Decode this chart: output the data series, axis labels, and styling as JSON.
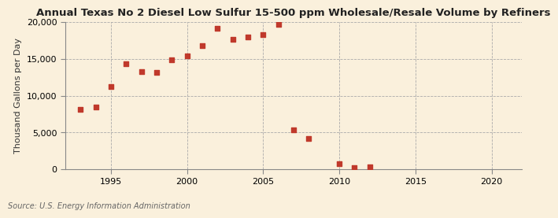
{
  "title": "Annual Texas No 2 Diesel Low Sulfur 15-500 ppm Wholesale/Resale Volume by Refiners",
  "ylabel": "Thousand Gallons per Day",
  "source": "Source: U.S. Energy Information Administration",
  "years": [
    1993,
    1994,
    1995,
    1996,
    1997,
    1998,
    1999,
    2000,
    2001,
    2002,
    2003,
    2004,
    2005,
    2006,
    2007,
    2008,
    2010,
    2011,
    2012
  ],
  "values": [
    8100,
    8500,
    11200,
    14300,
    13300,
    13200,
    14900,
    15400,
    16800,
    19200,
    17700,
    18000,
    18300,
    19700,
    5400,
    4200,
    800,
    200,
    300
  ],
  "marker_color": "#C0392B",
  "marker_size": 4,
  "bg_color": "#FAF0DC",
  "grid_color": "#AAAAAA",
  "xlim": [
    1992,
    2022
  ],
  "ylim": [
    0,
    20000
  ],
  "yticks": [
    0,
    5000,
    10000,
    15000,
    20000
  ],
  "xticks": [
    1995,
    2000,
    2005,
    2010,
    2015,
    2020
  ],
  "title_fontsize": 9.5,
  "label_fontsize": 8,
  "tick_fontsize": 8,
  "source_fontsize": 7
}
